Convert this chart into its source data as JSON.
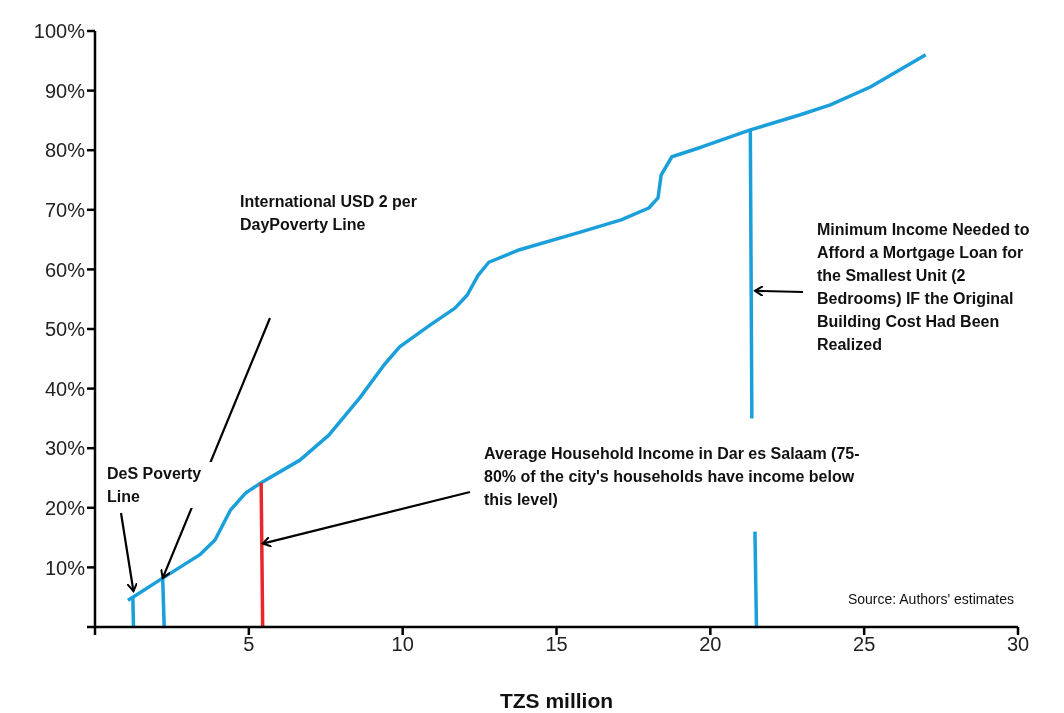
{
  "chart_data": {
    "type": "line",
    "xlabel": "TZS million",
    "xlim": [
      0,
      30
    ],
    "xticks": [
      {
        "value": 0,
        "label": null
      },
      5,
      10,
      15,
      20,
      25,
      30
    ],
    "ylim": [
      0,
      100
    ],
    "yticks": [
      {
        "value": 0,
        "label": null
      },
      {
        "value": 10,
        "label": "10%"
      },
      {
        "value": 20,
        "label": "20%"
      },
      {
        "value": 30,
        "label": "30%"
      },
      {
        "value": 40,
        "label": "40%"
      },
      {
        "value": 50,
        "label": "50%"
      },
      {
        "value": 60,
        "label": "60%"
      },
      {
        "value": 70,
        "label": "70%"
      },
      {
        "value": 80,
        "label": "80%"
      },
      {
        "value": 90,
        "label": "90%"
      },
      {
        "value": 100,
        "label": "100%"
      }
    ],
    "grid": false,
    "marker": "none",
    "series": [
      {
        "color": "#1a9fdb",
        "x": [
          1.07,
          1.23,
          2.2,
          3.4,
          3.9,
          4.4,
          4.9,
          5.4,
          6.66,
          7.6,
          8.6,
          9.4,
          9.9,
          10.9,
          11.7,
          12.1,
          12.45,
          12.8,
          13.8,
          15.8,
          17.1,
          18.0,
          18.3,
          18.4,
          18.75,
          19.7,
          21.3,
          22.9,
          23.9,
          25.2,
          27.0
        ],
        "values": [
          4.5,
          5.0,
          8.2,
          12.1,
          14.6,
          19.6,
          22.5,
          24.2,
          28,
          32.2,
          38.4,
          44,
          47,
          50.7,
          53.5,
          55.7,
          59,
          61.2,
          63.3,
          66.3,
          68.3,
          70.3,
          72,
          75.8,
          78.9,
          80.5,
          83.4,
          85.9,
          87.6,
          90.6,
          96
        ]
      },
      {
        "color": "#1a9fdb",
        "x": [
          1.23,
          1.25
        ],
        "values": [
          5.0,
          0
        ]
      },
      {
        "color": "#1a9fdb",
        "x": [
          2.2,
          2.25
        ],
        "values": [
          8.2,
          0
        ]
      },
      {
        "color": "#e8262b",
        "x": [
          5.4,
          5.45
        ],
        "values": [
          24.2,
          0
        ]
      },
      {
        "color": "#1a9fdb",
        "x": [
          21.3,
          21.35,
          21.4,
          21.45,
          21.5
        ],
        "values": [
          83.4,
          35,
          null,
          16,
          0
        ]
      }
    ],
    "annotations": [
      {
        "text": "DeS Poverty Line",
        "x": 1.25,
        "y": 6
      },
      "International USD 2 per DayPoverty Line",
      {
        "text": "Average Household Income in Dar es Salaam (75-80% of the city's households have income below this level)",
        "x": 5.45,
        "y": 14
      },
      {
        "text": "Minimum Income Needed to Afford a Mortgage Loan for the Smallest Unit (2 Bedrooms) IF the Original Building Cost Had Been Realized",
        "x": 21.45,
        "y": 56.4
      },
      "Source: Authors' estimates"
    ]
  }
}
